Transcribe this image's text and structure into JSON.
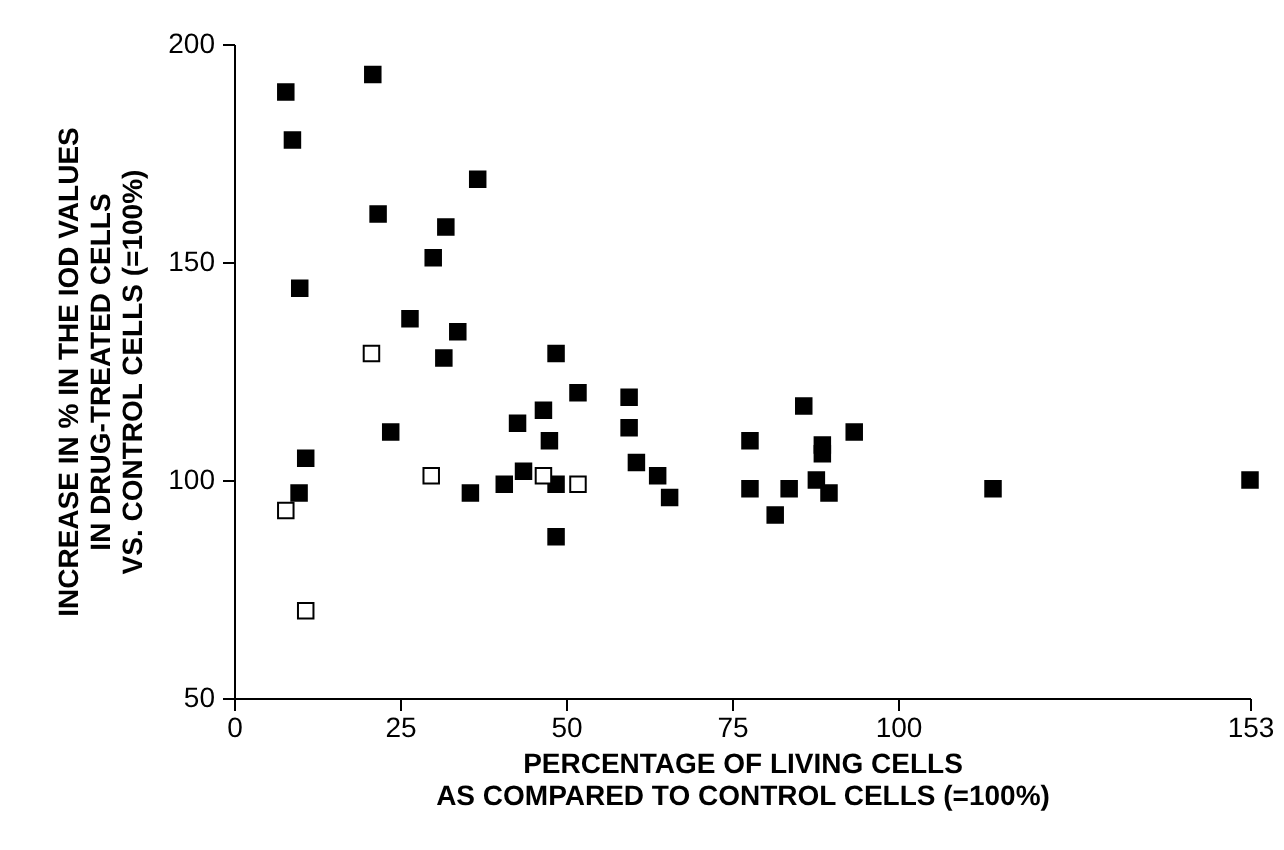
{
  "chart_data": {
    "type": "scatter",
    "xlabel": "PERCENTAGE OF LIVING CELLS\nAS COMPARED TO CONTROL CELLS (=100%)",
    "ylabel": "INCREASE IN % IN THE IOD VALUES\nIN DRUG-TREATED CELLS\nVS. CONTROL CELLS (=100%)",
    "xlim": [
      0,
      153
    ],
    "xticks": [
      0,
      25,
      50,
      75,
      100,
      153
    ],
    "ylim": [
      50,
      200
    ],
    "yticks": [
      50,
      100,
      150,
      200
    ],
    "grid": false,
    "marker": "square",
    "series": [
      {
        "color": "#000000",
        "x": [
          7.8,
          20.9,
          8.8,
          36.7,
          21.7,
          31.9,
          30.0,
          9.9,
          26.5,
          33.7,
          31.6,
          23.6,
          42.7,
          10.8,
          9.8,
          35.6,
          40.7,
          43.6,
          48.5,
          46.6,
          51.8,
          47.5,
          48.5,
          48.5,
          59.5,
          59.5,
          60.6,
          63.8,
          65.6,
          77.7,
          77.7,
          81.5,
          83.6,
          85.8,
          88.6,
          88.6,
          87.7,
          89.6,
          93.4,
          114.3,
          153
        ],
        "values": [
          189,
          193,
          178,
          169,
          161,
          158,
          151,
          144,
          137,
          134,
          128,
          111,
          113,
          105,
          97,
          97,
          99,
          102,
          129,
          116,
          120,
          109,
          99,
          87,
          119,
          112,
          104,
          101,
          96,
          109,
          98,
          92,
          98,
          117,
          108,
          106,
          100,
          97,
          111,
          98,
          100
        ]
      },
      {
        "color": "#ffffff",
        "x": [
          20.7,
          29.7,
          7.8,
          10.8,
          46.6,
          51.8
        ],
        "values": [
          129,
          101,
          93,
          70,
          101,
          99
        ]
      }
    ]
  }
}
